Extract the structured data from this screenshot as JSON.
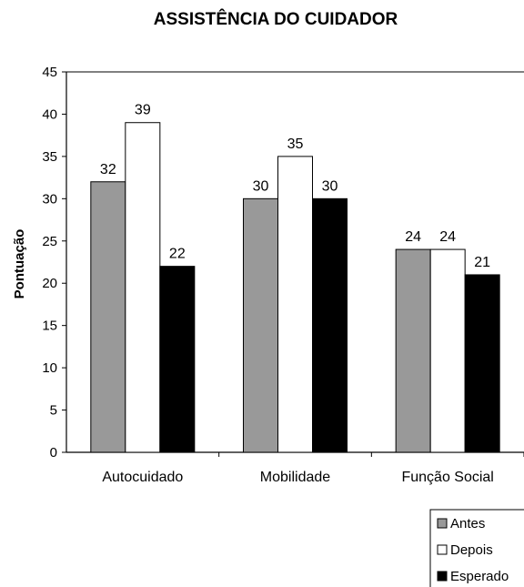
{
  "chart_data": {
    "type": "bar",
    "title": "ASSISTÊNCIA DO CUIDADOR",
    "xlabel": "",
    "ylabel": "Pontuação",
    "ylim": [
      0,
      45
    ],
    "yticks": [
      0,
      5,
      10,
      15,
      20,
      25,
      30,
      35,
      40,
      45
    ],
    "grid": false,
    "legend_position": "bottom-right",
    "categories": [
      "Autocuidado",
      "Mobilidade",
      "Função Social"
    ],
    "series": [
      {
        "name": "Antes",
        "values": [
          32,
          30,
          24
        ],
        "color": "#999999"
      },
      {
        "name": "Depois",
        "values": [
          39,
          35,
          24
        ],
        "color": "#ffffff"
      },
      {
        "name": "Esperado",
        "values": [
          22,
          30,
          21
        ],
        "color": "#000000"
      }
    ],
    "data_labels": true
  }
}
